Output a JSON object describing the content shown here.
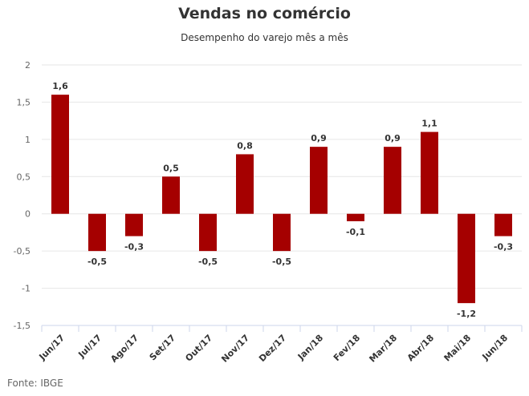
{
  "chart_data": {
    "type": "bar",
    "title": "Vendas no comércio",
    "subtitle": "Desempenho do varejo mês a mês",
    "source": "Fonte: IBGE",
    "categories": [
      "Jun/17",
      "Jul/17",
      "Ago/17",
      "Set/17",
      "Out/17",
      "Nov/17",
      "Dez/17",
      "Jan/18",
      "Fev/18",
      "Mar/18",
      "Abr/18",
      "Mai/18",
      "Jun/18"
    ],
    "values": [
      1.6,
      -0.5,
      -0.3,
      0.5,
      -0.5,
      0.8,
      -0.5,
      0.9,
      -0.1,
      0.9,
      1.1,
      -1.2,
      -0.3
    ],
    "data_labels": [
      "1,6",
      "-0,5",
      "-0,3",
      "0,5",
      "-0,5",
      "0,8",
      "-0,5",
      "0,9",
      "-0,1",
      "0,9",
      "1,1",
      "-1,2",
      "-0,3"
    ],
    "yticks": [
      2,
      1.5,
      1,
      0.5,
      0,
      -0.5,
      -1,
      -1.5
    ],
    "ytick_labels": [
      "2",
      "1,5",
      "1",
      "0,5",
      "0",
      "-0,5",
      "-1",
      "-1,5"
    ],
    "ylim": [
      -1.5,
      2
    ],
    "xlabel": "",
    "ylabel": "",
    "grid": true,
    "bar_color": "#a50000"
  }
}
